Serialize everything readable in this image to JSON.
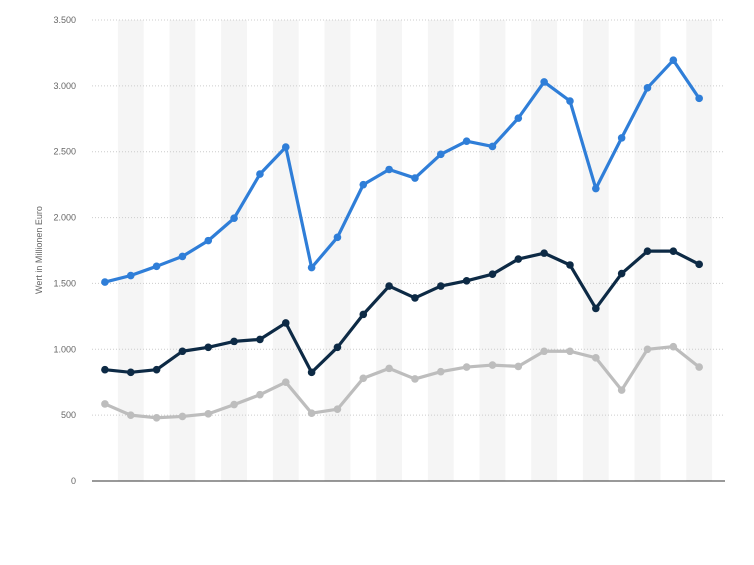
{
  "chart_data": {
    "type": "line",
    "title": "",
    "xlabel": "",
    "ylabel": "Wert in Millionen Euro",
    "ylim": [
      0,
      3500
    ],
    "yticks": [
      0,
      500,
      1000,
      1500,
      2000,
      2500,
      3000,
      3500
    ],
    "ytick_labels": [
      "0",
      "500",
      "1.000",
      "1.500",
      "2.000",
      "2.500",
      "3.000",
      "3.500"
    ],
    "grid": true,
    "legend": "none",
    "point_count": 24,
    "series": [
      {
        "color": "#2f7ed8",
        "values": [
          1510,
          1560,
          1630,
          1705,
          1825,
          1995,
          2330,
          2535,
          1620,
          1850,
          2250,
          2365,
          2300,
          2480,
          2580,
          2540,
          2755,
          3030,
          2885,
          2220,
          2605,
          2985,
          3195,
          2905
        ]
      },
      {
        "color": "#0d2a45",
        "values": [
          845,
          825,
          845,
          985,
          1015,
          1060,
          1075,
          1200,
          825,
          1015,
          1265,
          1480,
          1390,
          1480,
          1520,
          1570,
          1685,
          1730,
          1640,
          1310,
          1575,
          1745,
          1745,
          1645
        ]
      },
      {
        "color": "#bdbdbd",
        "values": [
          585,
          500,
          480,
          490,
          510,
          580,
          655,
          750,
          515,
          545,
          780,
          855,
          775,
          830,
          865,
          880,
          870,
          985,
          985,
          935,
          690,
          1000,
          1020,
          865
        ]
      }
    ]
  }
}
